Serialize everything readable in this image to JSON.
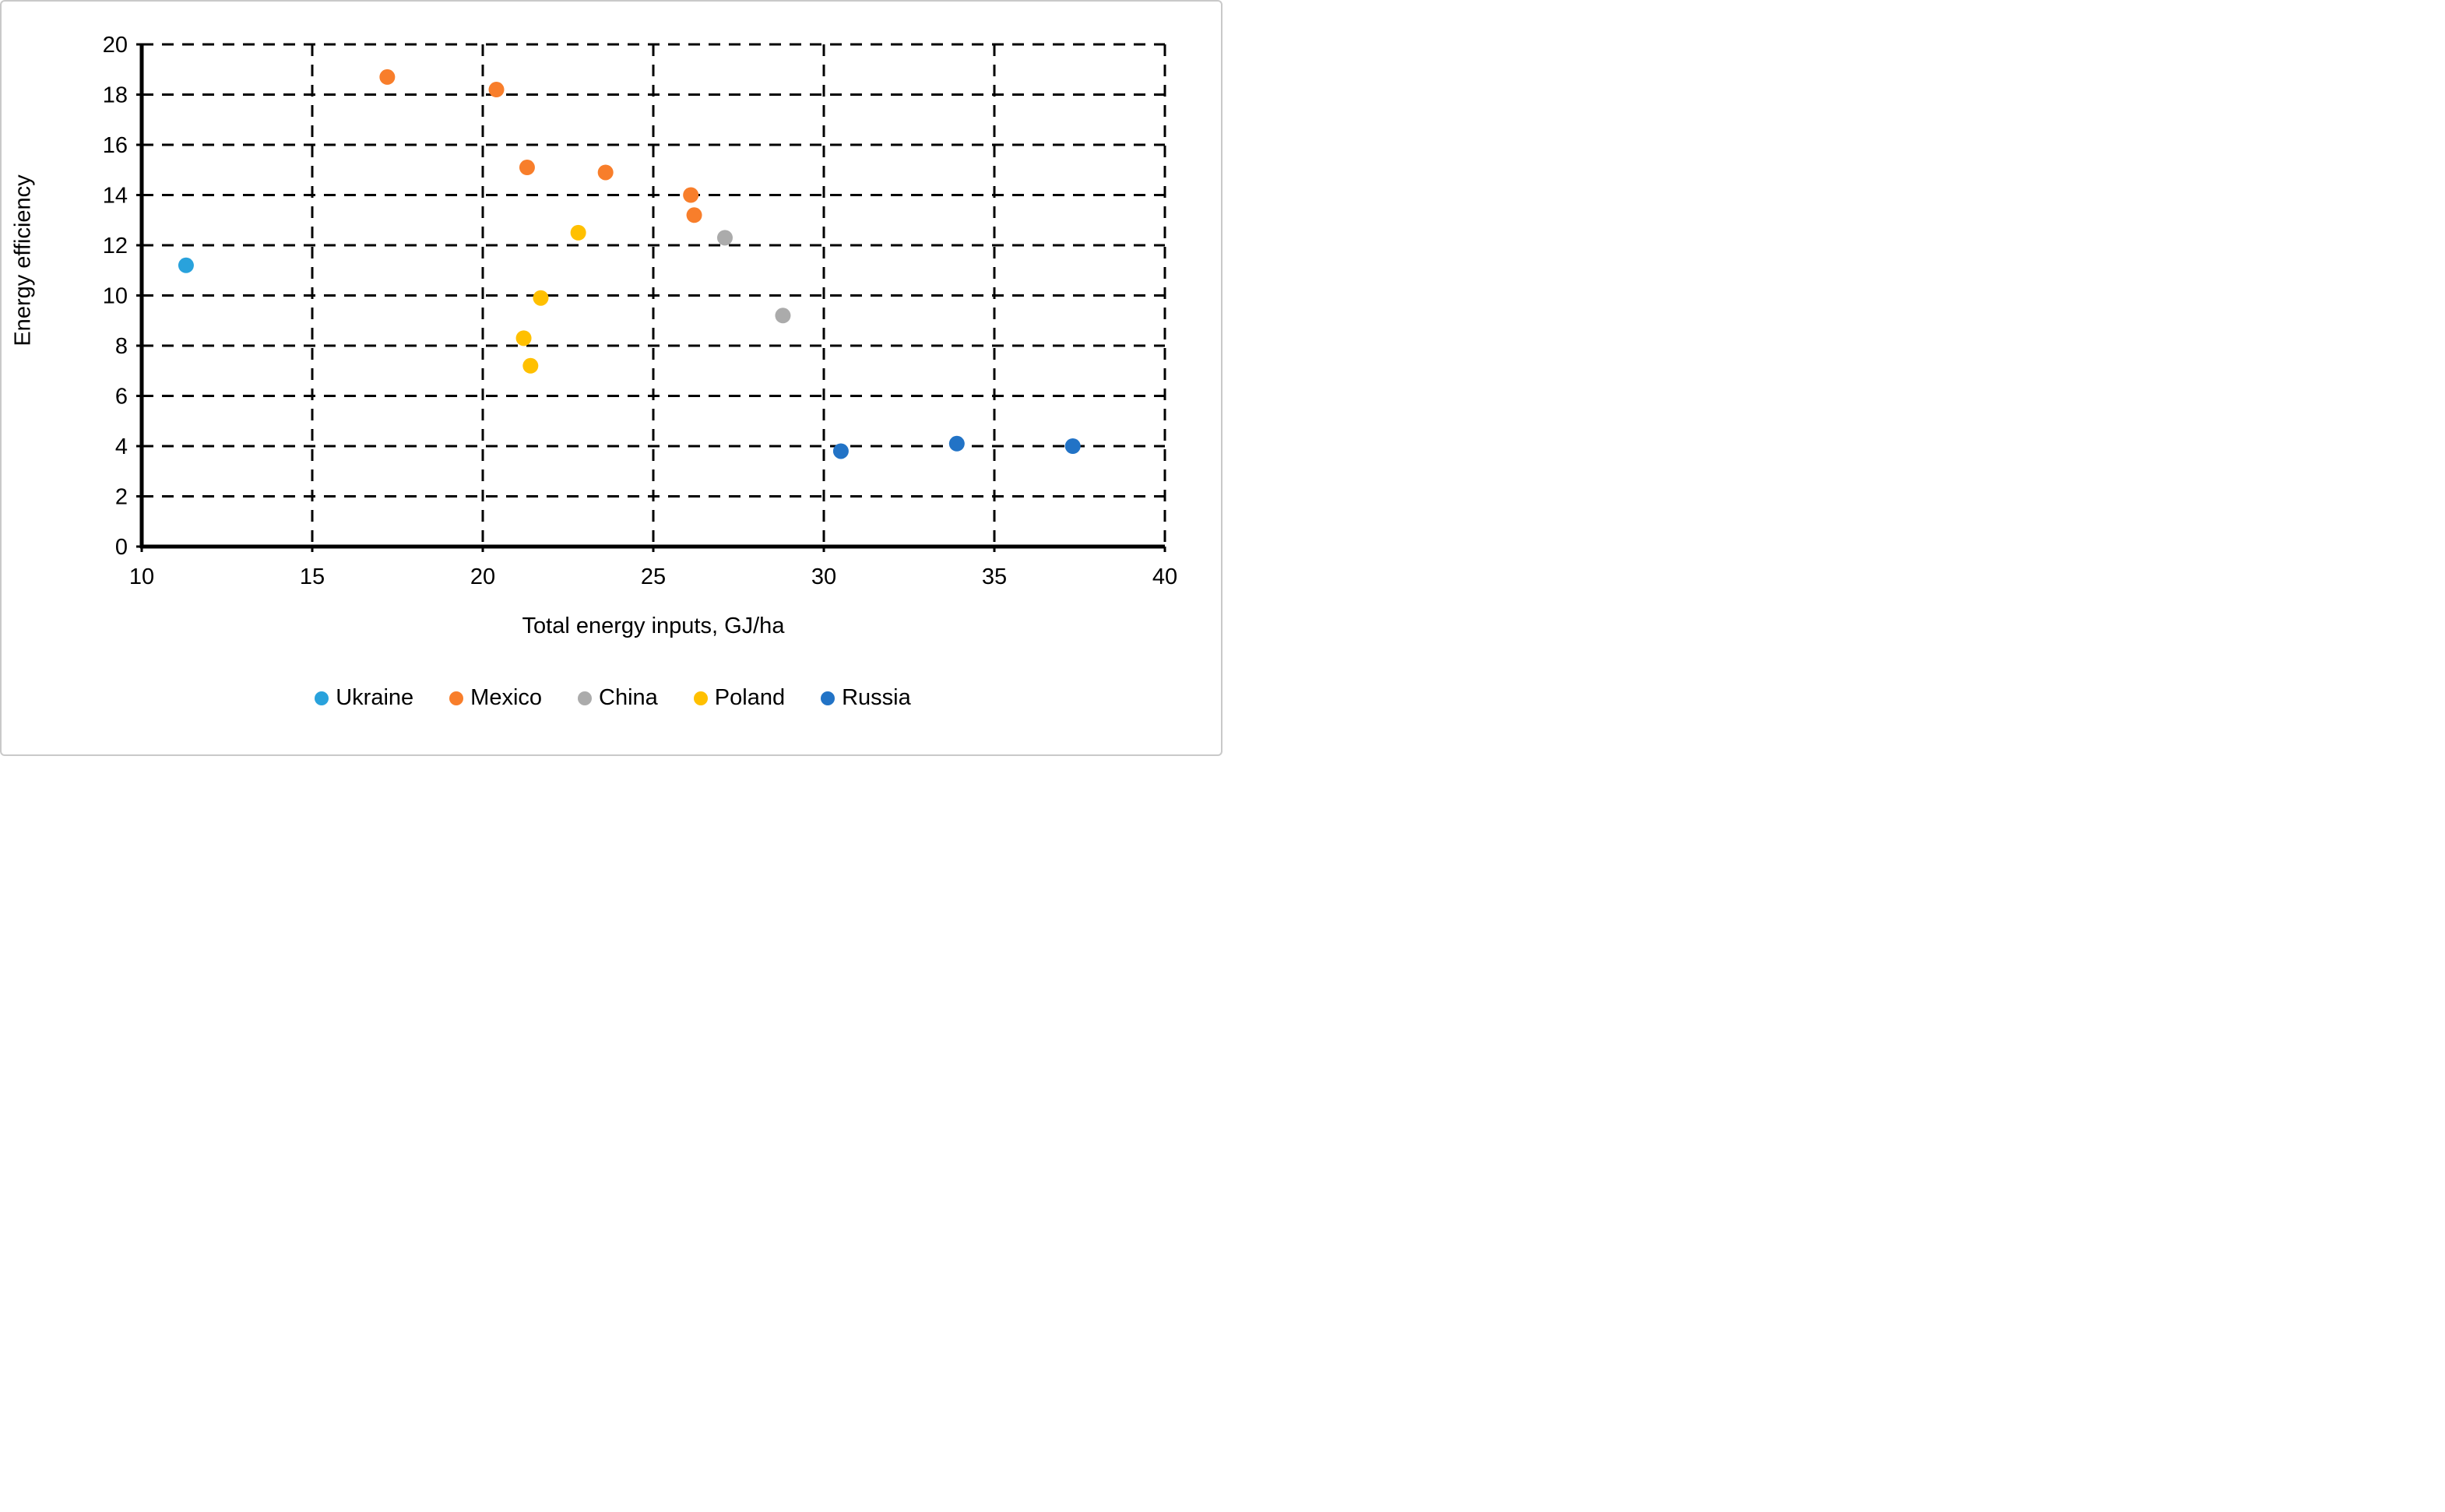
{
  "figure": {
    "background": "#ffffff",
    "border_color": "#c9c9c9",
    "grid_color": "#000000",
    "axis_color": "#000000"
  },
  "chart_data": {
    "type": "scatter",
    "title": "",
    "xlabel": "Total energy inputs, GJ/ha",
    "ylabel": "Energy efficiency",
    "xlim": [
      10,
      40
    ],
    "ylim": [
      0,
      20
    ],
    "xticks": [
      10,
      15,
      20,
      25,
      30,
      35,
      40
    ],
    "yticks": [
      0,
      2,
      4,
      6,
      8,
      10,
      12,
      14,
      16,
      18,
      20
    ],
    "grid": "dashed",
    "legend_position": "bottom-center",
    "series": [
      {
        "name": "Ukraine",
        "color": "#29a2dc",
        "points": [
          [
            11.3,
            11.2
          ]
        ]
      },
      {
        "name": "Mexico",
        "color": "#f87e2b",
        "points": [
          [
            17.2,
            18.7
          ],
          [
            20.4,
            18.2
          ],
          [
            21.3,
            15.1
          ],
          [
            23.6,
            14.9
          ],
          [
            26.1,
            14.0
          ],
          [
            26.2,
            13.2
          ]
        ]
      },
      {
        "name": "China",
        "color": "#ababab",
        "points": [
          [
            27.1,
            12.3
          ],
          [
            28.8,
            9.2
          ]
        ]
      },
      {
        "name": "Poland",
        "color": "#ffc000",
        "points": [
          [
            22.8,
            12.5
          ],
          [
            21.7,
            9.9
          ],
          [
            21.2,
            8.3
          ],
          [
            21.4,
            7.2
          ]
        ]
      },
      {
        "name": "Russia",
        "color": "#2273c6",
        "points": [
          [
            30.5,
            3.8
          ],
          [
            33.9,
            4.1
          ],
          [
            37.3,
            4.0
          ]
        ]
      }
    ]
  }
}
